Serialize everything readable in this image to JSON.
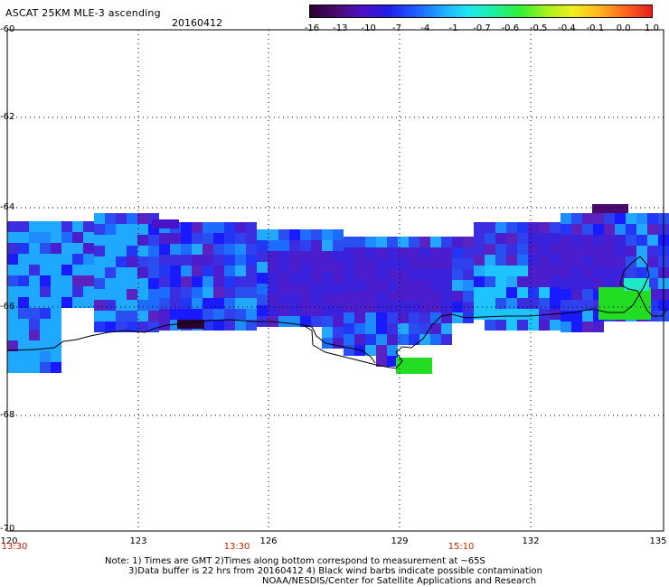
{
  "header": {
    "title": "ASCAT 25KM MLE-3 ascending",
    "date": "20160412"
  },
  "colorbar": {
    "labels": [
      "-16",
      "-13",
      "-10",
      "-7",
      "-4",
      "-1",
      "-0.7",
      "-0.6",
      "-0.5",
      "-0.4",
      "-0.1",
      "0.0",
      "1.0"
    ],
    "colors": [
      "#2a0033",
      "#4a0a6e",
      "#4b12c8",
      "#1e1ee8",
      "#1e5cff",
      "#1ea8ff",
      "#1ee8f0",
      "#1ef0a0",
      "#32f032",
      "#a8f01e",
      "#f0f01e",
      "#ffb41e",
      "#ff641e",
      "#e61e1e"
    ]
  },
  "axes": {
    "lat_labels": [
      "-60",
      "-62",
      "-64",
      "-66",
      "-68",
      "-70"
    ],
    "lon_labels": [
      "120",
      "123",
      "126",
      "129",
      "132",
      "135"
    ],
    "time_labels": [
      "13:30",
      "13:30",
      "15:10"
    ]
  },
  "legend_colors": {
    "coast": "#000000",
    "grid": "#000000",
    "time_text": "#cc2200",
    "ice_green": "#22dd22"
  },
  "notes": {
    "line1": "Note: 1) Times are GMT 2)Times along bottom correspond to measurement at ~65S",
    "line2": "3)Data buffer is 22 hrs from 20160412 4) Black wind barbs indicate possible contamination",
    "line3": "NOAA/NESDIS/Center for Satellite Applications and Research"
  }
}
